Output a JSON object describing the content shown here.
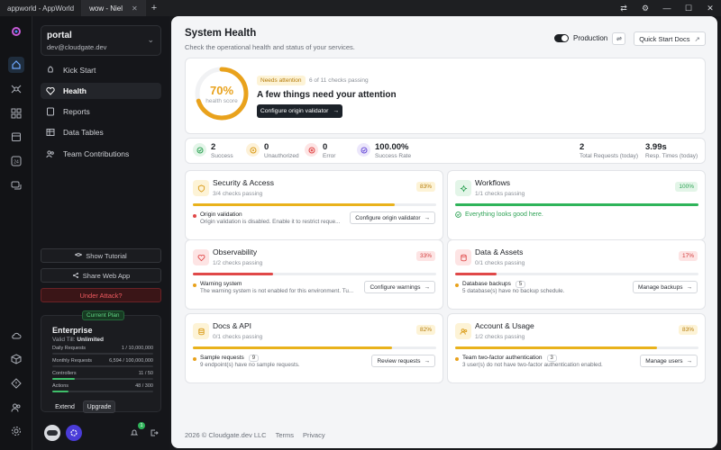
{
  "tabs": [
    {
      "label": "appworld - AppWorld"
    },
    {
      "label": "wow - Niel"
    }
  ],
  "sidebar": {
    "project_name": "portal",
    "project_email": "dev@cloudgate.dev",
    "nav": [
      {
        "label": "Kick Start"
      },
      {
        "label": "Health"
      },
      {
        "label": "Reports"
      },
      {
        "label": "Data Tables"
      },
      {
        "label": "Team Contributions"
      }
    ],
    "show_tutorial": "Show Tutorial",
    "share_web_app": "Share Web App",
    "under_attack": "Under Attack?",
    "plan": {
      "badge": "Current Plan",
      "name": "Enterprise",
      "valid_label": "Valid Till:",
      "valid_value": "Unlimited",
      "meters": [
        {
          "label": "Daily Requests",
          "value": "1 / 10,000,000",
          "fill": 0.0
        },
        {
          "label": "Monthly Requests",
          "value": "6,594 / 100,000,000",
          "fill": 0.0
        },
        {
          "label": "Controllers",
          "value": "11 / 50",
          "fill": 0.22
        },
        {
          "label": "Actions",
          "value": "48 / 300",
          "fill": 0.16
        }
      ],
      "extend": "Extend",
      "upgrade": "Upgrade"
    },
    "notif_count": "1"
  },
  "main": {
    "title": "System Health",
    "subtitle": "Check the operational health and status of your services.",
    "env_label": "Production",
    "quick_start": "Quick Start Docs",
    "hero": {
      "score": "70%",
      "score_fraction": 0.7,
      "score_label": "health score",
      "badge": "Needs attention",
      "checks": "6 of 11 checks passing",
      "headline": "A few things need your attention",
      "cta": "Configure origin validator"
    },
    "stats": [
      {
        "num": "2",
        "label": "Success"
      },
      {
        "num": "0",
        "label": "Unauthorized"
      },
      {
        "num": "0",
        "label": "Error"
      },
      {
        "num": "100.00%",
        "label": "Success Rate"
      }
    ],
    "stats_right": [
      {
        "num": "2",
        "label": "Total Requests (today)"
      },
      {
        "num": "3.99s",
        "label": "Resp. Times (today)"
      }
    ],
    "sections": [
      {
        "title": "Security & Access",
        "sub": "3/4 checks passing",
        "pct": "83%",
        "fill": 0.83,
        "issue_title": "Origin validation",
        "issue_desc": "Origin validation is disabled. Enable it to restrict reque...",
        "btn": "Configure origin validator"
      },
      {
        "title": "Workflows",
        "sub": "1/1 checks passing",
        "pct": "100%",
        "fill": 1.0,
        "ok": "Everything looks good here."
      },
      {
        "title": "Observability",
        "sub": "1/2 checks passing",
        "pct": "33%",
        "fill": 0.33,
        "issue_title": "Warning system",
        "issue_desc": "The warning system is not enabled for this environment. Tu...",
        "btn": "Configure warnings"
      },
      {
        "title": "Data & Assets",
        "sub": "0/1 checks passing",
        "pct": "17%",
        "fill": 0.17,
        "issue_title": "Database backups",
        "issue_count": "5",
        "issue_desc": "5 database(s) have no backup schedule.",
        "btn": "Manage backups"
      },
      {
        "title": "Docs & API",
        "sub": "0/1 checks passing",
        "pct": "82%",
        "fill": 0.82,
        "issue_title": "Sample requests",
        "issue_count": "9",
        "issue_desc": "9 endpoint(s) have no sample requests.",
        "btn": "Review requests"
      },
      {
        "title": "Account & Usage",
        "sub": "1/2 checks passing",
        "pct": "83%",
        "fill": 0.83,
        "issue_title": "Team two-factor authentication",
        "issue_count": "3",
        "issue_desc": "3 user(s) do not have two-factor authentication enabled.",
        "btn": "Manage users"
      }
    ],
    "footer": {
      "copyright": "2026 ©  Cloudgate.dev LLC",
      "terms": "Terms",
      "privacy": "Privacy"
    }
  },
  "colors": {
    "accent": "#e9a21c",
    "good": "#2fb45a",
    "bad": "#e04848",
    "dark": "#1c2229"
  }
}
